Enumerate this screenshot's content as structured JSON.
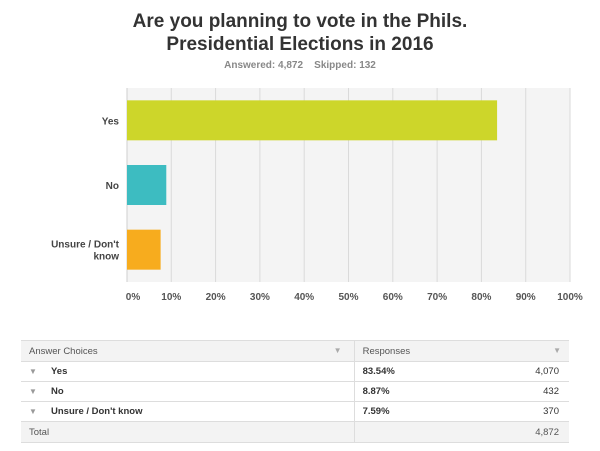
{
  "title_line1": "Are you planning to vote in the Phils.",
  "title_line2": "Presidential Elections in 2016",
  "stats": {
    "answered_label": "Answered:",
    "answered_value": "4,872",
    "skipped_label": "Skipped:",
    "skipped_value": "132"
  },
  "chart_data": {
    "type": "bar",
    "orientation": "horizontal",
    "categories": [
      "Yes",
      "No",
      "Unsure / Don't know"
    ],
    "category_lines": [
      [
        "Yes"
      ],
      [
        "No"
      ],
      [
        "Unsure / Don't",
        "know"
      ]
    ],
    "values": [
      83.54,
      8.87,
      7.59
    ],
    "colors": [
      "#cdd62a",
      "#3dbcc1",
      "#f7ac1e"
    ],
    "xlim": [
      0,
      100
    ],
    "xticks": [
      0,
      10,
      20,
      30,
      40,
      50,
      60,
      70,
      80,
      90,
      100
    ],
    "xtick_labels": [
      "0%",
      "10%",
      "20%",
      "30%",
      "40%",
      "50%",
      "60%",
      "70%",
      "80%",
      "90%",
      "100%"
    ],
    "grid": true,
    "plot_background": "#f4f4f4"
  },
  "table": {
    "headers": [
      "Answer Choices",
      "Responses"
    ],
    "rows": [
      {
        "choice": "Yes",
        "percent": "83.54%",
        "count": "4,070"
      },
      {
        "choice": "No",
        "percent": "8.87%",
        "count": "432"
      },
      {
        "choice": "Unsure / Don't know",
        "percent": "7.59%",
        "count": "370"
      }
    ],
    "total_label": "Total",
    "total_value": "4,872"
  }
}
